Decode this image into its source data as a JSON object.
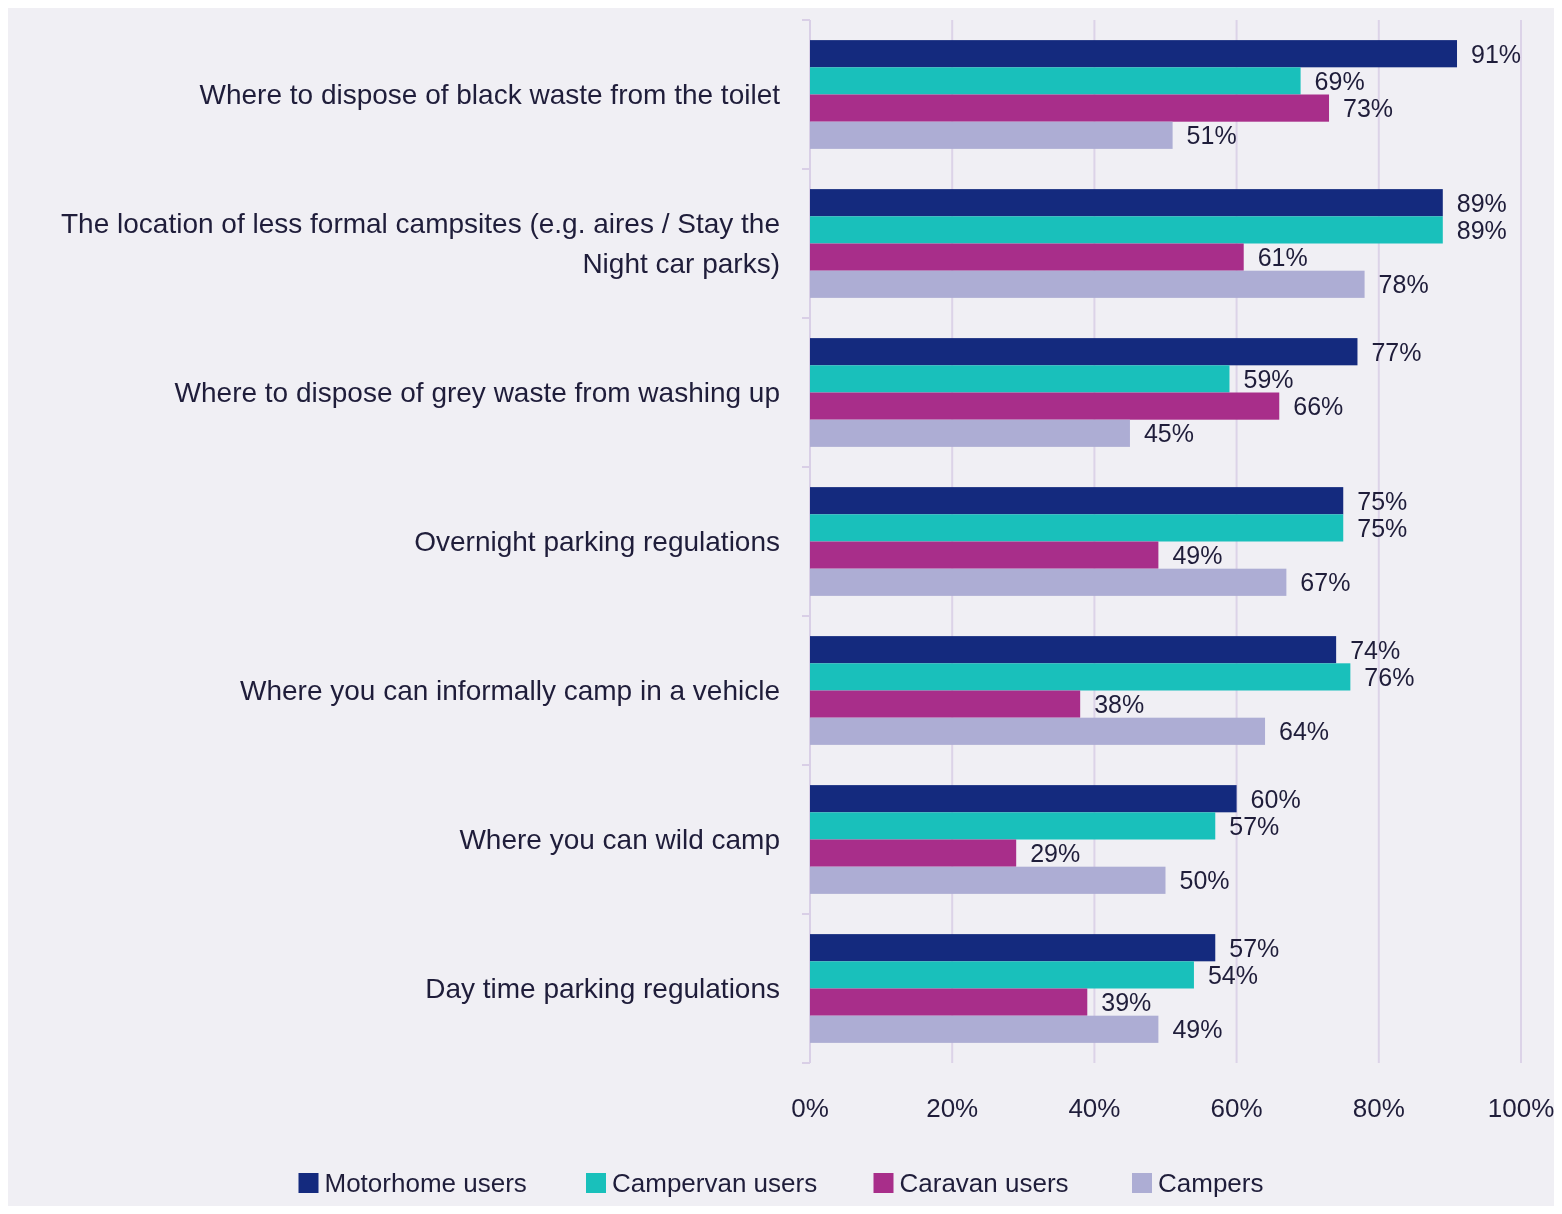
{
  "chart_data": {
    "type": "bar",
    "orientation": "horizontal",
    "categories": [
      "Where to dispose of black waste from the toilet",
      "The location of less formal campsites (e.g. aires / Stay the Night car parks)",
      "Where to dispose of grey waste from washing up",
      "Overnight parking regulations",
      "Where you can informally camp in a vehicle",
      "Where you can wild camp",
      "Day time parking regulations"
    ],
    "series": [
      {
        "name": "Motorhome users",
        "color": "#142a7e",
        "values": [
          91,
          89,
          77,
          75,
          74,
          60,
          57
        ],
        "value_labels": [
          "91%",
          "89%",
          "77%",
          "75%",
          "74%",
          "60%",
          "57%"
        ]
      },
      {
        "name": "Campervan users",
        "color": "#19c0bb",
        "values": [
          69,
          89,
          59,
          75,
          76,
          57,
          54
        ],
        "value_labels": [
          "69%",
          "89%",
          "59%",
          "75%",
          "76%",
          "57%",
          "54%"
        ]
      },
      {
        "name": "Caravan users",
        "color": "#a82e8a",
        "values": [
          73,
          61,
          66,
          49,
          38,
          29,
          39
        ],
        "value_labels": [
          "73%",
          "61%",
          "66%",
          "49%",
          "38%",
          "29%",
          "39%"
        ]
      },
      {
        "name": "Campers",
        "color": "#adadd4",
        "values": [
          51,
          78,
          45,
          67,
          64,
          50,
          49
        ],
        "value_labels": [
          "51%",
          "78%",
          "45%",
          "67%",
          "64%",
          "50%",
          "49%"
        ]
      }
    ],
    "xlim": [
      0,
      100
    ],
    "xticks": [
      {
        "value": 0,
        "label": "0%"
      },
      {
        "value": 20,
        "label": "20%"
      },
      {
        "value": 40,
        "label": "40%"
      },
      {
        "value": 60,
        "label": "60%"
      },
      {
        "value": 80,
        "label": "80%"
      },
      {
        "value": 100,
        "label": "100%"
      }
    ],
    "grid": "x",
    "legend": "bottom"
  }
}
